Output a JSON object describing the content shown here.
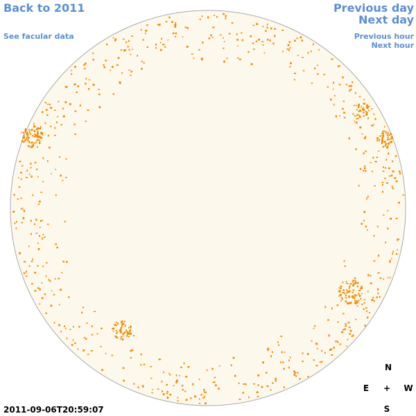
{
  "nav": {
    "back": "Back to 2011",
    "facular": "See facular data",
    "prev_day": "Previous day",
    "next_day": "Next day",
    "prev_hour": "Previous hour",
    "next_hour": "Next hour"
  },
  "timestamp": "2011-09-06T20:59:07",
  "compass": {
    "north": "N",
    "east": "E",
    "center": "+",
    "west": "W",
    "south": "S"
  }
}
